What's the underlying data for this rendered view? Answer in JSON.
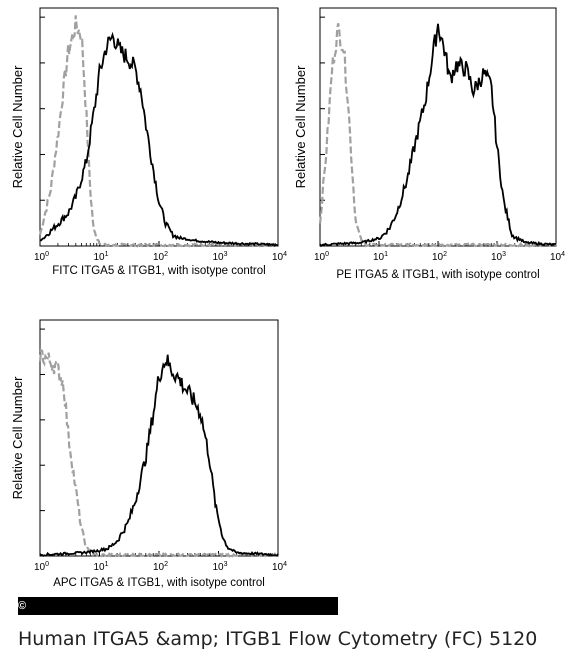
{
  "caption": "Human ITGA5 &amp; ITGB1 Flow Cytometry (FC) 5120",
  "copyright_symbol": "©",
  "chart_data": [
    {
      "type": "line",
      "panel": "top-left",
      "xlabel": "FITC ITGA5 & ITGB1, with isotype control",
      "ylabel": "Relative Cell Number",
      "xscale": "log",
      "xlim": [
        1,
        10000
      ],
      "xticks": [
        "10^0",
        "10^1",
        "10^2",
        "10^3",
        "10^4"
      ],
      "series": [
        {
          "style": "dashed",
          "color": "#a0a0a0",
          "x": [
            1,
            1.5,
            2,
            2.5,
            3,
            4,
            5,
            6,
            7,
            8,
            10,
            12,
            100,
            10000
          ],
          "y": [
            0.05,
            0.25,
            0.5,
            0.72,
            0.88,
            1.0,
            0.95,
            0.6,
            0.25,
            0.07,
            0.01,
            0,
            0,
            0
          ]
        },
        {
          "style": "solid",
          "color": "#000000",
          "x": [
            1,
            2,
            3,
            4,
            6,
            8,
            10,
            13,
            17,
            22,
            30,
            40,
            50,
            60,
            80,
            100,
            130,
            170,
            250,
            400,
            1000,
            10000
          ],
          "y": [
            0.02,
            0.1,
            0.15,
            0.22,
            0.38,
            0.6,
            0.78,
            0.9,
            0.95,
            0.88,
            0.85,
            0.8,
            0.7,
            0.55,
            0.35,
            0.2,
            0.1,
            0.05,
            0.03,
            0.02,
            0.01,
            0
          ]
        }
      ]
    },
    {
      "type": "line",
      "panel": "top-right",
      "xlabel": "PE ITGA5 & ITGB1, with isotype control",
      "ylabel": "Relative Cell Number",
      "xscale": "log",
      "xlim": [
        1,
        10000
      ],
      "xticks": [
        "10^0",
        "10^1",
        "10^2",
        "10^3",
        "10^4"
      ],
      "series": [
        {
          "style": "dashed",
          "color": "#a0a0a0",
          "x": [
            1,
            1.3,
            1.6,
            2,
            2.5,
            3,
            3.5,
            4,
            5,
            6,
            10000
          ],
          "y": [
            0.1,
            0.45,
            0.8,
            0.98,
            0.9,
            0.65,
            0.35,
            0.12,
            0.02,
            0,
            0
          ]
        },
        {
          "style": "solid",
          "color": "#000000",
          "x": [
            1,
            5,
            10,
            15,
            20,
            30,
            40,
            60,
            80,
            100,
            130,
            160,
            200,
            300,
            400,
            600,
            800,
            1000,
            1300,
            1800,
            3000,
            10000
          ],
          "y": [
            0,
            0.01,
            0.03,
            0.08,
            0.15,
            0.3,
            0.45,
            0.65,
            0.85,
            1.0,
            0.88,
            0.75,
            0.82,
            0.8,
            0.7,
            0.78,
            0.72,
            0.45,
            0.2,
            0.05,
            0.01,
            0
          ]
        }
      ]
    },
    {
      "type": "line",
      "panel": "bottom-left",
      "xlabel": "APC ITGA5 & ITGB1, with isotype control",
      "ylabel": "Relative Cell Number",
      "xscale": "log",
      "xlim": [
        1,
        10000
      ],
      "xticks": [
        "10^0",
        "10^1",
        "10^2",
        "10^3",
        "10^4"
      ],
      "series": [
        {
          "style": "dashed",
          "color": "#a0a0a0",
          "x": [
            1,
            1.3,
            1.6,
            2,
            2.5,
            3,
            4,
            5,
            6,
            7,
            8,
            10000
          ],
          "y": [
            0.92,
            0.9,
            0.88,
            0.85,
            0.78,
            0.55,
            0.3,
            0.12,
            0.04,
            0.01,
            0,
            0
          ]
        },
        {
          "style": "solid",
          "color": "#000000",
          "x": [
            1,
            5,
            10,
            15,
            20,
            30,
            40,
            60,
            80,
            100,
            130,
            160,
            200,
            250,
            300,
            400,
            500,
            700,
            900,
            1200,
            1500,
            2000,
            10000
          ],
          "y": [
            0,
            0.01,
            0.02,
            0.04,
            0.07,
            0.15,
            0.25,
            0.45,
            0.65,
            0.82,
            0.9,
            0.85,
            0.82,
            0.78,
            0.75,
            0.7,
            0.65,
            0.45,
            0.22,
            0.08,
            0.03,
            0.01,
            0
          ]
        }
      ]
    }
  ]
}
